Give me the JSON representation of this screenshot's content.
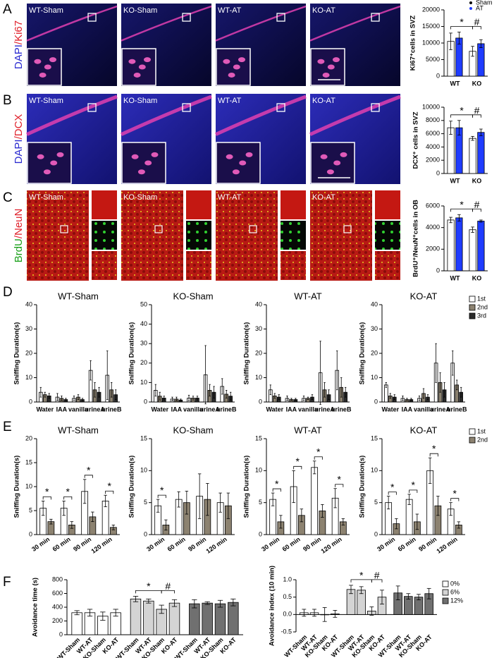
{
  "letters": [
    "A",
    "B",
    "C",
    "D",
    "E",
    "F"
  ],
  "image_panels": {
    "groups": [
      "WT-Sham",
      "KO-Sham",
      "WT-AT",
      "KO-AT"
    ],
    "rows": [
      {
        "stain": [
          {
            "text": "DAPI",
            "color": "#2a2ad0"
          },
          {
            "text": "/Ki67",
            "color": "#e0202a"
          }
        ]
      },
      {
        "stain": [
          {
            "text": "DAPI",
            "color": "#2a2ad0"
          },
          {
            "text": "/DCX",
            "color": "#e0202a"
          }
        ]
      },
      {
        "stain": [
          {
            "text": "BrdU",
            "color": "#1aa01a"
          },
          {
            "text": "/NeuN",
            "color": "#e0202a"
          }
        ]
      }
    ]
  },
  "chart_data": [
    {
      "type": "bar",
      "y_label": "Ki67⁺cells in SVZ",
      "categories": [
        "WT",
        "KO"
      ],
      "series": [
        {
          "name": "Sham",
          "color": "#ffffff",
          "values": [
            10500,
            7500
          ],
          "errors": [
            2500,
            1500
          ]
        },
        {
          "name": "AT",
          "color": "#1f3cff",
          "values": [
            11500,
            9800
          ],
          "errors": [
            1800,
            1200
          ]
        }
      ],
      "ylim": [
        0,
        20000
      ],
      "yticks": [
        0,
        5000,
        10000,
        15000,
        20000
      ],
      "annotations": [
        "*",
        "#"
      ]
    },
    {
      "type": "bar",
      "y_label": "DCX⁺ cells in SVZ",
      "categories": [
        "WT",
        "KO"
      ],
      "series": [
        {
          "color": "#ffffff",
          "values": [
            6900,
            5300
          ],
          "errors": [
            1000,
            300
          ]
        },
        {
          "color": "#1f3cff",
          "values": [
            6900,
            6200
          ],
          "errors": [
            1100,
            500
          ]
        }
      ],
      "ylim": [
        0,
        10000
      ],
      "yticks": [
        0,
        2000,
        4000,
        6000,
        8000,
        10000
      ],
      "annotations": [
        "*",
        "#"
      ]
    },
    {
      "type": "bar",
      "y_label": "BrdU⁺/NeuN⁺cells in OB",
      "categories": [
        "WT",
        "KO"
      ],
      "series": [
        {
          "color": "#ffffff",
          "values": [
            4700,
            3800
          ],
          "errors": [
            250,
            250
          ]
        },
        {
          "color": "#1f3cff",
          "values": [
            4900,
            4600
          ],
          "errors": [
            300,
            100
          ]
        }
      ],
      "ylim": [
        0,
        6000
      ],
      "yticks": [
        0,
        2000,
        4000,
        6000
      ],
      "annotations": [
        "*",
        "#"
      ]
    },
    {
      "type": "bar",
      "title": "WT-Sham",
      "y_label": "Sniffing Duration(s)",
      "categories": [
        "Water",
        "IAA",
        "vanilla",
        "urineA",
        "urineB"
      ],
      "series": [
        {
          "color": "#ffffff",
          "values": [
            4,
            2,
            1.5,
            13,
            11
          ],
          "errors": [
            2,
            1.5,
            1,
            4,
            10
          ]
        },
        {
          "color": "#8c8270",
          "values": [
            3,
            1.5,
            2,
            5,
            5
          ],
          "errors": [
            1,
            1,
            1,
            3,
            3
          ]
        },
        {
          "color": "#2a2a2a",
          "values": [
            2.5,
            1,
            1,
            4,
            3
          ],
          "errors": [
            1,
            0.5,
            0.5,
            2,
            2
          ]
        }
      ],
      "ylim": [
        0,
        40
      ],
      "yticks": [
        0,
        10,
        20,
        30,
        40
      ]
    },
    {
      "type": "bar",
      "title": "KO-Sham",
      "y_label": "Sniffing Duration(s)",
      "categories": [
        "Water",
        "IAA",
        "vanilla",
        "urineA",
        "urineB"
      ],
      "series": [
        {
          "color": "#ffffff",
          "values": [
            6,
            1.5,
            2,
            14,
            8
          ],
          "errors": [
            3,
            1,
            1.5,
            15,
            4
          ]
        },
        {
          "color": "#8c8270",
          "values": [
            3,
            1.5,
            2,
            6,
            4
          ],
          "errors": [
            2,
            1,
            1,
            3,
            2
          ]
        },
        {
          "color": "#2a2a2a",
          "values": [
            2,
            1,
            2,
            5,
            3
          ],
          "errors": [
            1,
            0.5,
            1,
            3,
            2
          ]
        }
      ],
      "ylim": [
        0,
        50
      ],
      "yticks": [
        0,
        10,
        20,
        30,
        40,
        50
      ]
    },
    {
      "type": "bar",
      "title": "WT-AT",
      "y_label": "Sniffing Duration(s)",
      "categories": [
        "Water",
        "IAA",
        "vanilla",
        "urineA",
        "urineB"
      ],
      "series": [
        {
          "color": "#ffffff",
          "values": [
            5,
            1.5,
            1.5,
            12,
            13
          ],
          "errors": [
            2,
            1,
            1,
            13,
            8
          ]
        },
        {
          "color": "#8c8270",
          "values": [
            2.5,
            1,
            1.5,
            5,
            6
          ],
          "errors": [
            1,
            0.5,
            0.5,
            3,
            4
          ]
        },
        {
          "color": "#2a2a2a",
          "values": [
            2,
            1,
            2,
            3,
            4
          ],
          "errors": [
            1,
            0.5,
            1,
            2,
            2
          ]
        }
      ],
      "ylim": [
        0,
        40
      ],
      "yticks": [
        0,
        10,
        20,
        30,
        40
      ]
    },
    {
      "type": "bar",
      "title": "KO-AT",
      "y_label": "Sniffing Duration(s)",
      "categories": [
        "Water",
        "IAA",
        "vanilla",
        "urineA",
        "urineB"
      ],
      "series": [
        {
          "name": "1st",
          "color": "#ffffff",
          "values": [
            7,
            1.5,
            1.5,
            16,
            16
          ],
          "errors": [
            1,
            1,
            1,
            8,
            5
          ]
        },
        {
          "name": "2nd",
          "color": "#8c8270",
          "values": [
            2.5,
            1,
            3.5,
            8,
            7
          ],
          "errors": [
            1,
            0.5,
            2,
            4,
            2
          ]
        },
        {
          "name": "3rd",
          "color": "#2a2a2a",
          "values": [
            2,
            1,
            2,
            5,
            4
          ],
          "errors": [
            1,
            0.5,
            1,
            3,
            2
          ]
        }
      ],
      "ylim": [
        0,
        40
      ],
      "yticks": [
        0,
        10,
        20,
        30,
        40
      ]
    },
    {
      "type": "bar",
      "title": "WT-Sham",
      "y_label": "Sniffing Duration(s)",
      "categories": [
        "30 min",
        "60 min",
        "90 min",
        "120 min"
      ],
      "series": [
        {
          "color": "#ffffff",
          "values": [
            5.5,
            5.5,
            9,
            7
          ],
          "errors": [
            1.5,
            1.5,
            2.5,
            1.2
          ]
        },
        {
          "color": "#8c8270",
          "values": [
            2.7,
            2,
            3.7,
            1.5
          ],
          "errors": [
            0.5,
            0.7,
            1,
            0.5
          ]
        }
      ],
      "ylim": [
        0,
        20
      ],
      "yticks": [
        0,
        5,
        10,
        15,
        20
      ],
      "significance": [
        "*",
        "*",
        "*",
        "*"
      ]
    },
    {
      "type": "bar",
      "title": "KO-Sham",
      "y_label": "Sniffing Duration(s)",
      "categories": [
        "30 min",
        "60 min",
        "90 min",
        "120 min"
      ],
      "series": [
        {
          "color": "#ffffff",
          "values": [
            4.5,
            5.5,
            6,
            5
          ],
          "errors": [
            1,
            1.2,
            3.5,
            1.5
          ]
        },
        {
          "color": "#8c8270",
          "values": [
            1.5,
            5,
            5.5,
            4.5
          ],
          "errors": [
            0.8,
            1.8,
            2.5,
            2
          ]
        }
      ],
      "ylim": [
        0,
        15
      ],
      "yticks": [
        0,
        5,
        10,
        15
      ],
      "significance": [
        "*",
        null,
        null,
        null
      ]
    },
    {
      "type": "bar",
      "title": "WT-AT",
      "y_label": "Sniffing Duration(s)",
      "categories": [
        "30 min",
        "60 min",
        "90 min",
        "120 min"
      ],
      "series": [
        {
          "color": "#ffffff",
          "values": [
            5.5,
            7.5,
            10.5,
            5.7
          ],
          "errors": [
            1,
            2.5,
            1,
            1.5
          ]
        },
        {
          "color": "#8c8270",
          "values": [
            2,
            3,
            3.7,
            2
          ],
          "errors": [
            1,
            1,
            1,
            0.5
          ]
        }
      ],
      "ylim": [
        0,
        15
      ],
      "yticks": [
        0,
        5,
        10,
        15
      ],
      "significance": [
        "*",
        "*",
        "*",
        "*"
      ]
    },
    {
      "type": "bar",
      "title": "KO-AT",
      "y_label": "Sniffing Duration(s)",
      "categories": [
        "30 min",
        "60 min",
        "90 min",
        "120 min"
      ],
      "series": [
        {
          "name": "1st",
          "color": "#ffffff",
          "values": [
            5,
            5.5,
            10,
            4
          ],
          "errors": [
            1,
            0.8,
            2,
            1
          ]
        },
        {
          "name": "2nd",
          "color": "#8c8270",
          "values": [
            1.7,
            2,
            4.5,
            1.5
          ],
          "errors": [
            0.8,
            1.2,
            1.5,
            0.5
          ]
        }
      ],
      "ylim": [
        0,
        15
      ],
      "yticks": [
        0,
        5,
        10,
        15
      ],
      "significance": [
        "*",
        "*",
        "*",
        "*"
      ]
    },
    {
      "type": "bar",
      "y_label": "Avoidance time (s)",
      "categories": [
        "WT-Sham",
        "WT-AT",
        "KO-Sham",
        "KO-AT"
      ],
      "series": [
        {
          "color": "#ffffff",
          "values": [
            320,
            320,
            270,
            320
          ],
          "errors": [
            30,
            50,
            60,
            50
          ]
        },
        {
          "color": "#d4d4d4",
          "values": [
            520,
            490,
            370,
            460
          ],
          "errors": [
            40,
            30,
            60,
            50
          ]
        },
        {
          "color": "#707070",
          "values": [
            450,
            460,
            450,
            470
          ],
          "errors": [
            60,
            20,
            50,
            50
          ]
        }
      ],
      "ylim": [
        0,
        800
      ],
      "yticks": [
        0,
        200,
        400,
        600,
        800
      ],
      "annotations": [
        "*",
        "#"
      ]
    },
    {
      "type": "bar",
      "y_label": "Avoidance index (10 min)",
      "categories": [
        "WT-Sham",
        "WT-AT",
        "KO-Sham",
        "KO-AT"
      ],
      "series": [
        {
          "name": "0%",
          "color": "#ffffff",
          "values": [
            0.05,
            0.05,
            0,
            0.02
          ],
          "errors": [
            0.1,
            0.1,
            0.2,
            0.1
          ]
        },
        {
          "name": "6%",
          "color": "#d4d4d4",
          "values": [
            0.72,
            0.7,
            0.1,
            0.5
          ],
          "errors": [
            0.12,
            0.1,
            0.12,
            0.2
          ]
        },
        {
          "name": "12%",
          "color": "#707070",
          "values": [
            0.62,
            0.52,
            0.5,
            0.6
          ],
          "errors": [
            0.2,
            0.08,
            0.08,
            0.15
          ]
        }
      ],
      "ylim": [
        -0.5,
        1.0
      ],
      "yticks": [
        -0.5,
        {
          "value": 0,
          "label": "0.0"
        },
        0.5,
        {
          "value": 1,
          "label": "1.0"
        }
      ],
      "annotations": [
        "*",
        "#"
      ]
    }
  ]
}
